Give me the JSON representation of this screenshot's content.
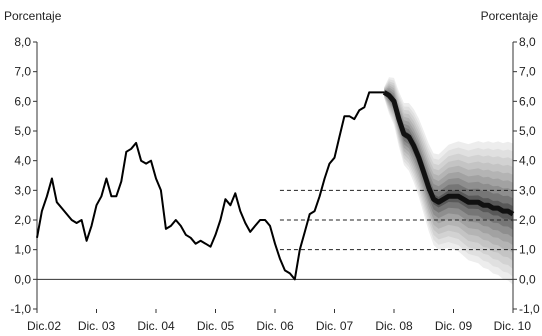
{
  "chart_data": {
    "type": "line",
    "ylabel_left": "Porcentaje",
    "ylabel_right": "Porcentaje",
    "ylim": [
      -1.0,
      8.0
    ],
    "y_ticks": [
      -1.0,
      0.0,
      1.0,
      2.0,
      3.0,
      4.0,
      5.0,
      6.0,
      7.0,
      8.0
    ],
    "y_tick_labels": [
      "-1,0",
      "0,0",
      "1,0",
      "2,0",
      "3,0",
      "4,0",
      "5,0",
      "6,0",
      "7,0",
      "8,0"
    ],
    "xlim": [
      2002.917,
      2010.917
    ],
    "x_ticks": [
      2002.917,
      2003.917,
      2004.917,
      2005.917,
      2006.917,
      2007.917,
      2008.917,
      2009.917,
      2010.917
    ],
    "x_tick_labels": [
      "Dic.02",
      "Dic. 03",
      "Dic. 04",
      "Dic. 05",
      "Dic. 06",
      "Dic. 07",
      "Dic. 08",
      "Dic. 09",
      "Dic. 10"
    ],
    "target_lines": [
      1.0,
      2.0,
      3.0
    ],
    "target_line_start_x": 2007.0,
    "series": [
      {
        "style": "solid-black",
        "x": [
          2002.917,
          2003.0,
          2003.083,
          2003.167,
          2003.25,
          2003.333,
          2003.417,
          2003.5,
          2003.583,
          2003.667,
          2003.75,
          2003.833,
          2003.917,
          2004.0,
          2004.083,
          2004.167,
          2004.25,
          2004.333,
          2004.417,
          2004.5,
          2004.583,
          2004.667,
          2004.75,
          2004.833,
          2004.917,
          2005.0,
          2005.083,
          2005.167,
          2005.25,
          2005.333,
          2005.417,
          2005.5,
          2005.583,
          2005.667,
          2005.75,
          2005.833,
          2005.917,
          2006.0,
          2006.083,
          2006.167,
          2006.25,
          2006.333,
          2006.417,
          2006.5,
          2006.583,
          2006.667,
          2006.75,
          2006.833,
          2006.917,
          2007.0,
          2007.083,
          2007.167,
          2007.25,
          2007.333,
          2007.417,
          2007.5,
          2007.583,
          2007.667,
          2007.75,
          2007.833,
          2007.917,
          2008.0,
          2008.083,
          2008.167,
          2008.25,
          2008.333,
          2008.417,
          2008.5,
          2008.583,
          2008.667,
          2008.75
        ],
        "y": [
          1.4,
          2.3,
          2.8,
          3.4,
          2.6,
          2.4,
          2.2,
          2.0,
          1.9,
          2.0,
          1.3,
          1.8,
          2.5,
          2.8,
          3.4,
          2.8,
          2.8,
          3.3,
          4.3,
          4.4,
          4.6,
          4.0,
          3.9,
          4.0,
          3.4,
          3.0,
          1.7,
          1.8,
          2.0,
          1.8,
          1.5,
          1.4,
          1.2,
          1.3,
          1.2,
          1.1,
          1.5,
          2.0,
          2.7,
          2.5,
          2.9,
          2.3,
          1.9,
          1.6,
          1.8,
          2.0,
          2.0,
          1.8,
          1.2,
          0.7,
          0.3,
          0.2,
          0.0,
          1.0,
          1.6,
          2.2,
          2.3,
          2.8,
          3.4,
          3.9,
          4.1,
          4.8,
          5.5,
          5.5,
          5.4,
          5.7,
          5.8,
          6.3,
          6.3,
          6.3,
          6.3
        ]
      },
      {
        "style": "fan-central",
        "x": [
          2008.75,
          2008.833,
          2008.917,
          2009.0,
          2009.083,
          2009.167,
          2009.25,
          2009.333,
          2009.417,
          2009.5,
          2009.583,
          2009.667,
          2009.75,
          2009.833,
          2009.917,
          2010.0,
          2010.083,
          2010.167,
          2010.25,
          2010.333,
          2010.417,
          2010.5,
          2010.583,
          2010.667,
          2010.75,
          2010.833,
          2010.917
        ],
        "y": [
          6.3,
          6.2,
          6.0,
          5.4,
          4.9,
          4.8,
          4.5,
          4.1,
          3.6,
          3.1,
          2.7,
          2.6,
          2.7,
          2.8,
          2.8,
          2.8,
          2.7,
          2.6,
          2.6,
          2.6,
          2.5,
          2.5,
          2.4,
          2.4,
          2.3,
          2.3,
          2.2
        ]
      }
    ]
  }
}
